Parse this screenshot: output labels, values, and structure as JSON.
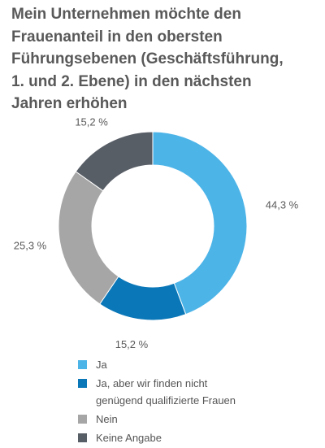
{
  "title_lines": [
    "Mein Unternehmen möchte den",
    "Frauenanteil in den obersten",
    "Führungsebenen (Geschäftsführung,",
    "1. und 2. Ebene) in den nächsten",
    "Jahren erhöhen"
  ],
  "chart_data": {
    "type": "pie",
    "title": "Mein Unternehmen möchte den Frauenanteil in den obersten Führungsebenen (Geschäftsführung, 1. und 2. Ebene) in den nächsten Jahren erhöhen",
    "donut": true,
    "labels": [
      "Ja",
      "Ja, aber wir finden nicht genügend qualifizierte Frauen",
      "Nein",
      "Keine Angabe"
    ],
    "values": [
      44.3,
      15.2,
      25.3,
      15.2
    ],
    "value_labels": [
      "44,3  %",
      "15,2 %",
      "25,3 %",
      "15,2 %"
    ],
    "colors": [
      "#4db4e8",
      "#0a77b8",
      "#a6a6a6",
      "#585e66"
    ],
    "legend_position": "bottom-left"
  },
  "legend": [
    {
      "lines": [
        "Ja"
      ],
      "color": "#4db4e8"
    },
    {
      "lines": [
        "Ja, aber wir finden nicht",
        "genügend qualifizierte Frauen"
      ],
      "color": "#0a77b8"
    },
    {
      "lines": [
        "Nein"
      ],
      "color": "#a6a6a6"
    },
    {
      "lines": [
        "Keine Angabe"
      ],
      "color": "#585e66"
    }
  ]
}
